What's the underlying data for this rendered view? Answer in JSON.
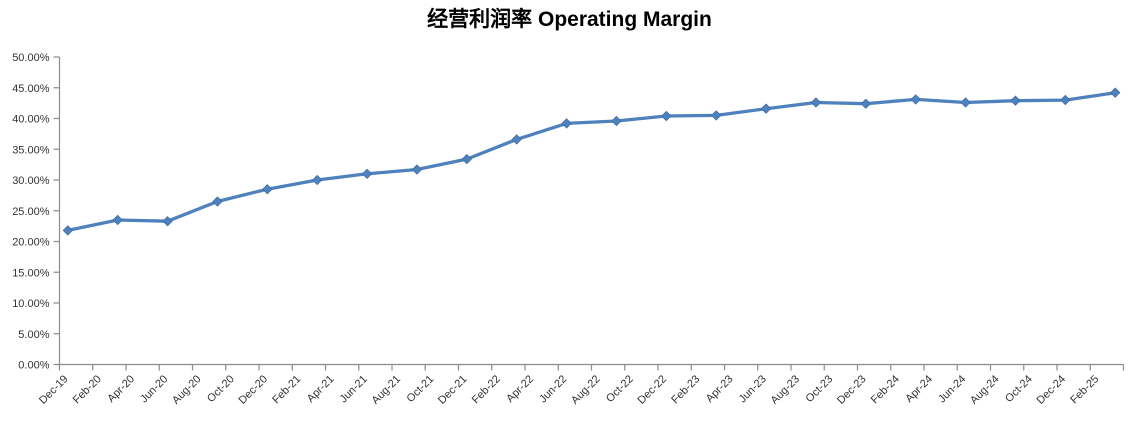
{
  "colors": {
    "series": "#4F81BD",
    "marker_border": "#3F6FA8",
    "axis_line": "#8C8C8C",
    "tick_label": "#333333",
    "title": "#000000",
    "background": "#FFFFFF"
  },
  "chart_data": {
    "type": "line",
    "title": "经营利润率 Operating Margin",
    "x": [
      "Dec-19",
      "Mar-20",
      "Jun-20",
      "Sep-20",
      "Dec-20",
      "Mar-21",
      "Jun-21",
      "Sep-21",
      "Dec-21",
      "Mar-22",
      "Jun-22",
      "Sep-22",
      "Dec-22",
      "Mar-23",
      "Jun-23",
      "Sep-23",
      "Dec-23",
      "Mar-24",
      "Jun-24",
      "Sep-24",
      "Dec-24",
      "Mar-25"
    ],
    "values": [
      21.8,
      23.5,
      23.3,
      26.5,
      28.5,
      30.0,
      31.0,
      31.7,
      33.4,
      36.6,
      39.2,
      39.6,
      40.4,
      40.5,
      41.6,
      42.6,
      42.4,
      43.1,
      42.6,
      42.9,
      43.0,
      44.2
    ],
    "x_tick_labels": [
      "Dec-19",
      "Feb-20",
      "Apr-20",
      "Jun-20",
      "Aug-20",
      "Oct-20",
      "Dec-20",
      "Feb-21",
      "Apr-21",
      "Jun-21",
      "Aug-21",
      "Oct-21",
      "Dec-21",
      "Feb-22",
      "Apr-22",
      "Jun-22",
      "Aug-22",
      "Oct-22",
      "Dec-22",
      "Feb-23",
      "Apr-23",
      "Jun-23",
      "Aug-23",
      "Oct-23",
      "Dec-23",
      "Feb-24",
      "Apr-24",
      "Jun-24",
      "Aug-24",
      "Oct-24",
      "Dec-24",
      "Feb-25"
    ],
    "y_ticks": [
      "0.00%",
      "5.00%",
      "10.00%",
      "15.00%",
      "20.00%",
      "25.00%",
      "30.00%",
      "35.00%",
      "40.00%",
      "45.00%",
      "50.00%"
    ],
    "ylim": [
      0,
      50
    ],
    "xlabel": "",
    "ylabel": "",
    "grid": false,
    "legend": "none",
    "marker": "diamond"
  }
}
